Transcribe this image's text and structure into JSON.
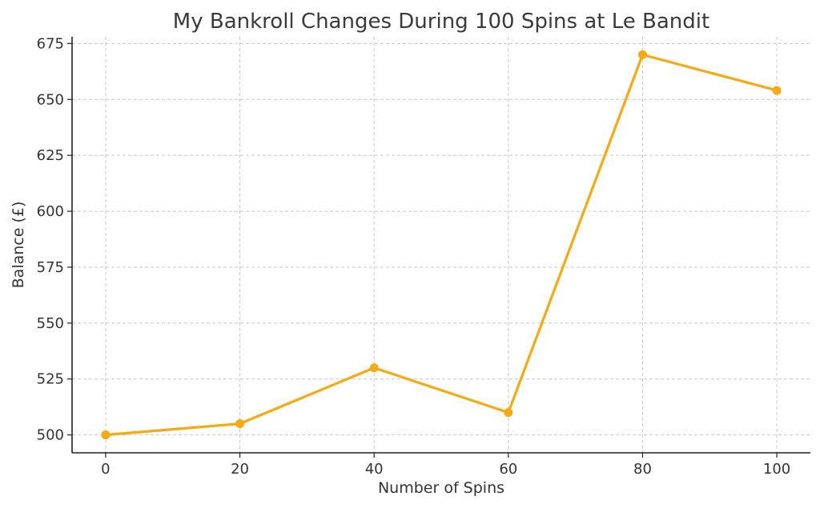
{
  "chart_data": {
    "type": "line",
    "title": "My Bankroll Changes During 100 Spins at Le Bandit",
    "xlabel": "Number of Spins",
    "ylabel": "Balance (£)",
    "x": [
      0,
      20,
      40,
      60,
      80,
      100
    ],
    "series": [
      {
        "values": [
          500,
          505,
          530,
          510,
          670,
          654
        ]
      }
    ],
    "xticks": [
      "0",
      "20",
      "40",
      "60",
      "80",
      "100"
    ],
    "yticks": [
      "500",
      "525",
      "550",
      "575",
      "600",
      "625",
      "650",
      "675"
    ],
    "xlim": [
      -5,
      105
    ],
    "ylim": [
      492,
      678
    ],
    "grid": true,
    "color": "#F5AA14"
  }
}
